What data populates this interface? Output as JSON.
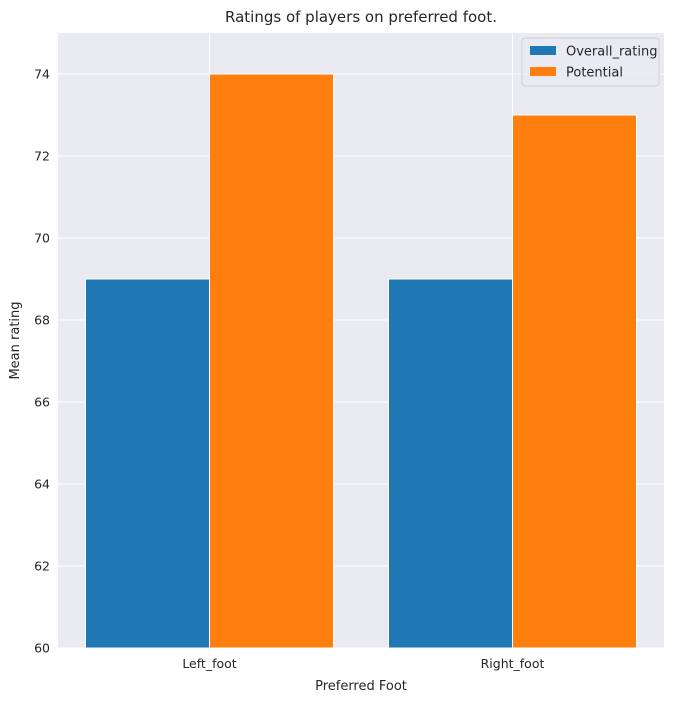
{
  "chart_data": {
    "type": "bar",
    "title": "Ratings of players on preferred foot.",
    "xlabel": "Preferred Foot",
    "ylabel": "Mean rating",
    "categories": [
      "Left_foot",
      "Right_foot"
    ],
    "series": [
      {
        "name": "Overall_rating",
        "values": [
          69,
          69
        ],
        "color": "#1f77b4"
      },
      {
        "name": "Potential",
        "values": [
          74,
          73
        ],
        "color": "#ff7f0e"
      }
    ],
    "ylim": [
      60,
      75
    ],
    "yticks": [
      60,
      62,
      64,
      66,
      68,
      70,
      72,
      74
    ],
    "grid": true,
    "legend_position": "top-right",
    "background_color": "#eaeaf2"
  }
}
